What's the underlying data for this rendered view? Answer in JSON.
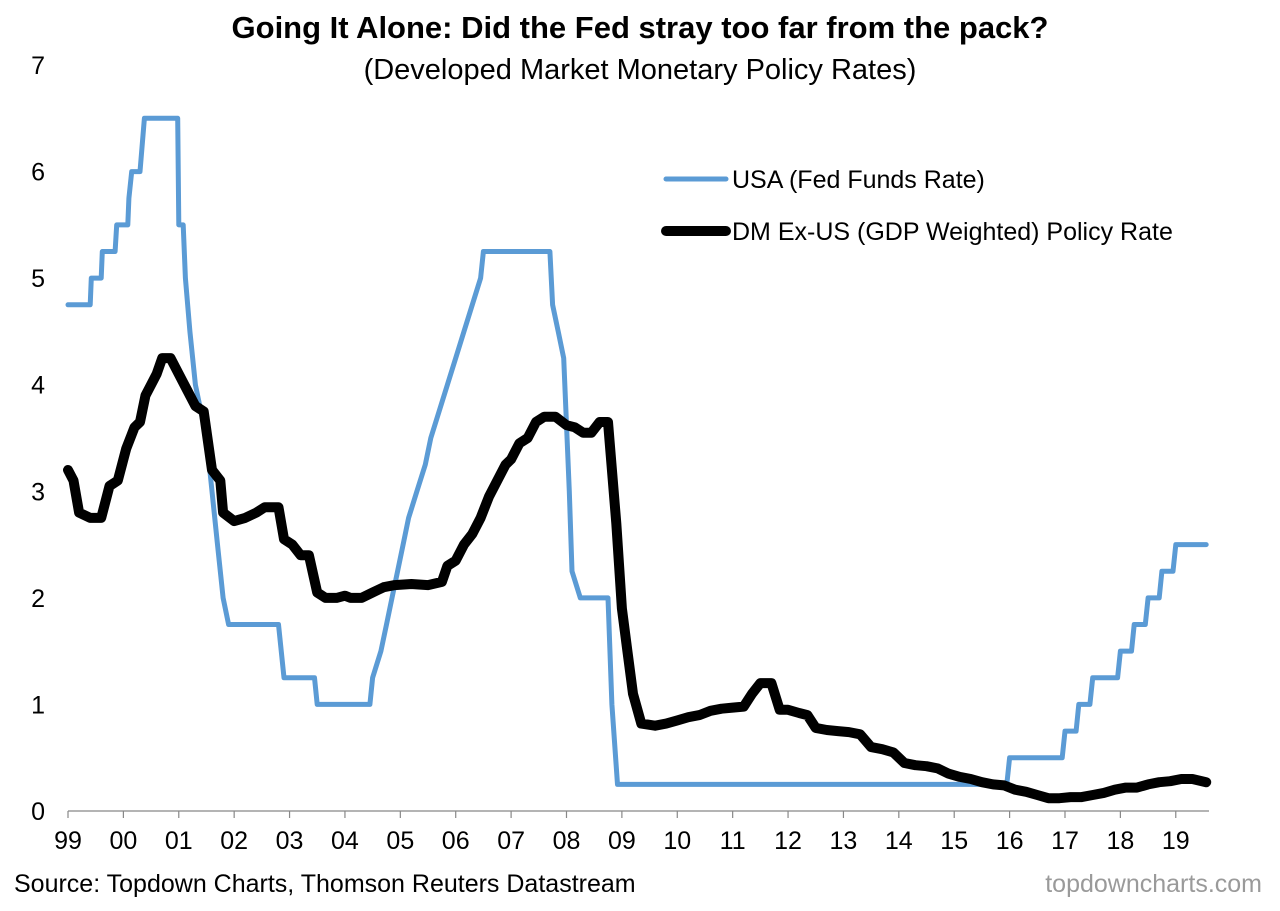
{
  "chart_data": {
    "type": "line",
    "title": "Going It Alone: Did the Fed stray too far from the pack?",
    "subtitle": "(Developed Market Monetary Policy Rates)",
    "xlabel": "",
    "ylabel": "",
    "xlim": [
      1999,
      2019.6
    ],
    "ylim": [
      0,
      7
    ],
    "x_ticks": [
      "99",
      "00",
      "01",
      "02",
      "03",
      "04",
      "05",
      "06",
      "07",
      "08",
      "09",
      "10",
      "11",
      "12",
      "13",
      "14",
      "15",
      "16",
      "17",
      "18",
      "19"
    ],
    "y_ticks": [
      "0",
      "1",
      "2",
      "3",
      "4",
      "5",
      "6",
      "7"
    ],
    "grid": false,
    "legend_position": "top-right",
    "series": [
      {
        "name": "USA (Fed Funds Rate)",
        "color": "#5B9BD5",
        "step": true,
        "points": [
          [
            1999.0,
            4.75
          ],
          [
            1999.4,
            4.75
          ],
          [
            1999.42,
            5.0
          ],
          [
            1999.6,
            5.0
          ],
          [
            1999.62,
            5.25
          ],
          [
            1999.85,
            5.25
          ],
          [
            1999.88,
            5.5
          ],
          [
            2000.08,
            5.5
          ],
          [
            2000.1,
            5.75
          ],
          [
            2000.15,
            6.0
          ],
          [
            2000.3,
            6.0
          ],
          [
            2000.38,
            6.5
          ],
          [
            2000.98,
            6.5
          ],
          [
            2001.0,
            5.5
          ],
          [
            2001.08,
            5.5
          ],
          [
            2001.12,
            5.0
          ],
          [
            2001.2,
            4.5
          ],
          [
            2001.3,
            4.0
          ],
          [
            2001.4,
            3.75
          ],
          [
            2001.5,
            3.5
          ],
          [
            2001.6,
            3.0
          ],
          [
            2001.7,
            2.5
          ],
          [
            2001.8,
            2.0
          ],
          [
            2001.9,
            1.75
          ],
          [
            2002.8,
            1.75
          ],
          [
            2002.9,
            1.25
          ],
          [
            2003.45,
            1.25
          ],
          [
            2003.5,
            1.0
          ],
          [
            2004.45,
            1.0
          ],
          [
            2004.5,
            1.25
          ],
          [
            2004.65,
            1.5
          ],
          [
            2004.75,
            1.75
          ],
          [
            2004.85,
            2.0
          ],
          [
            2004.95,
            2.25
          ],
          [
            2005.05,
            2.5
          ],
          [
            2005.15,
            2.75
          ],
          [
            2005.3,
            3.0
          ],
          [
            2005.45,
            3.25
          ],
          [
            2005.55,
            3.5
          ],
          [
            2005.7,
            3.75
          ],
          [
            2005.85,
            4.0
          ],
          [
            2006.0,
            4.25
          ],
          [
            2006.15,
            4.5
          ],
          [
            2006.3,
            4.75
          ],
          [
            2006.45,
            5.0
          ],
          [
            2006.5,
            5.25
          ],
          [
            2007.7,
            5.25
          ],
          [
            2007.75,
            4.75
          ],
          [
            2007.85,
            4.5
          ],
          [
            2007.95,
            4.25
          ],
          [
            2008.05,
            3.0
          ],
          [
            2008.1,
            2.25
          ],
          [
            2008.25,
            2.0
          ],
          [
            2008.75,
            2.0
          ],
          [
            2008.82,
            1.0
          ],
          [
            2008.92,
            0.25
          ],
          [
            2015.95,
            0.25
          ],
          [
            2016.0,
            0.5
          ],
          [
            2016.95,
            0.5
          ],
          [
            2017.0,
            0.75
          ],
          [
            2017.2,
            0.75
          ],
          [
            2017.25,
            1.0
          ],
          [
            2017.45,
            1.0
          ],
          [
            2017.5,
            1.25
          ],
          [
            2017.95,
            1.25
          ],
          [
            2018.0,
            1.5
          ],
          [
            2018.2,
            1.5
          ],
          [
            2018.25,
            1.75
          ],
          [
            2018.45,
            1.75
          ],
          [
            2018.5,
            2.0
          ],
          [
            2018.7,
            2.0
          ],
          [
            2018.75,
            2.25
          ],
          [
            2018.95,
            2.25
          ],
          [
            2019.0,
            2.5
          ],
          [
            2019.55,
            2.5
          ]
        ]
      },
      {
        "name": "DM Ex-US (GDP Weighted) Policy Rate",
        "color": "#000000",
        "step": false,
        "points": [
          [
            1999.0,
            3.2
          ],
          [
            1999.1,
            3.1
          ],
          [
            1999.2,
            2.8
          ],
          [
            1999.4,
            2.75
          ],
          [
            1999.6,
            2.75
          ],
          [
            1999.75,
            3.05
          ],
          [
            1999.9,
            3.1
          ],
          [
            2000.05,
            3.4
          ],
          [
            2000.2,
            3.6
          ],
          [
            2000.3,
            3.65
          ],
          [
            2000.4,
            3.9
          ],
          [
            2000.5,
            4.0
          ],
          [
            2000.6,
            4.1
          ],
          [
            2000.7,
            4.25
          ],
          [
            2000.85,
            4.25
          ],
          [
            2001.0,
            4.1
          ],
          [
            2001.15,
            3.95
          ],
          [
            2001.3,
            3.8
          ],
          [
            2001.45,
            3.75
          ],
          [
            2001.6,
            3.2
          ],
          [
            2001.75,
            3.1
          ],
          [
            2001.8,
            2.8
          ],
          [
            2002.0,
            2.72
          ],
          [
            2002.2,
            2.75
          ],
          [
            2002.4,
            2.8
          ],
          [
            2002.55,
            2.85
          ],
          [
            2002.8,
            2.85
          ],
          [
            2002.9,
            2.55
          ],
          [
            2003.05,
            2.5
          ],
          [
            2003.2,
            2.4
          ],
          [
            2003.35,
            2.4
          ],
          [
            2003.5,
            2.05
          ],
          [
            2003.65,
            2.0
          ],
          [
            2003.85,
            2.0
          ],
          [
            2004.0,
            2.02
          ],
          [
            2004.1,
            2.0
          ],
          [
            2004.3,
            2.0
          ],
          [
            2004.5,
            2.05
          ],
          [
            2004.7,
            2.1
          ],
          [
            2004.9,
            2.12
          ],
          [
            2005.2,
            2.13
          ],
          [
            2005.5,
            2.12
          ],
          [
            2005.75,
            2.15
          ],
          [
            2005.85,
            2.3
          ],
          [
            2006.0,
            2.35
          ],
          [
            2006.15,
            2.5
          ],
          [
            2006.3,
            2.6
          ],
          [
            2006.45,
            2.75
          ],
          [
            2006.6,
            2.95
          ],
          [
            2006.75,
            3.1
          ],
          [
            2006.9,
            3.25
          ],
          [
            2007.0,
            3.3
          ],
          [
            2007.15,
            3.45
          ],
          [
            2007.3,
            3.5
          ],
          [
            2007.45,
            3.65
          ],
          [
            2007.6,
            3.7
          ],
          [
            2007.8,
            3.7
          ],
          [
            2008.0,
            3.62
          ],
          [
            2008.15,
            3.6
          ],
          [
            2008.3,
            3.55
          ],
          [
            2008.45,
            3.55
          ],
          [
            2008.6,
            3.65
          ],
          [
            2008.75,
            3.65
          ],
          [
            2008.9,
            2.7
          ],
          [
            2009.0,
            1.9
          ],
          [
            2009.1,
            1.5
          ],
          [
            2009.2,
            1.1
          ],
          [
            2009.35,
            0.82
          ],
          [
            2009.6,
            0.8
          ],
          [
            2009.8,
            0.82
          ],
          [
            2010.0,
            0.85
          ],
          [
            2010.2,
            0.88
          ],
          [
            2010.4,
            0.9
          ],
          [
            2010.6,
            0.94
          ],
          [
            2010.8,
            0.96
          ],
          [
            2011.0,
            0.97
          ],
          [
            2011.2,
            0.98
          ],
          [
            2011.35,
            1.1
          ],
          [
            2011.5,
            1.2
          ],
          [
            2011.7,
            1.2
          ],
          [
            2011.85,
            0.95
          ],
          [
            2012.0,
            0.95
          ],
          [
            2012.2,
            0.92
          ],
          [
            2012.35,
            0.9
          ],
          [
            2012.5,
            0.78
          ],
          [
            2012.7,
            0.76
          ],
          [
            2012.9,
            0.75
          ],
          [
            2013.1,
            0.74
          ],
          [
            2013.3,
            0.72
          ],
          [
            2013.5,
            0.6
          ],
          [
            2013.7,
            0.58
          ],
          [
            2013.9,
            0.55
          ],
          [
            2014.1,
            0.45
          ],
          [
            2014.3,
            0.43
          ],
          [
            2014.5,
            0.42
          ],
          [
            2014.7,
            0.4
          ],
          [
            2014.9,
            0.35
          ],
          [
            2015.1,
            0.32
          ],
          [
            2015.3,
            0.3
          ],
          [
            2015.5,
            0.27
          ],
          [
            2015.7,
            0.25
          ],
          [
            2015.9,
            0.24
          ],
          [
            2016.1,
            0.2
          ],
          [
            2016.3,
            0.18
          ],
          [
            2016.5,
            0.15
          ],
          [
            2016.7,
            0.12
          ],
          [
            2016.9,
            0.12
          ],
          [
            2017.1,
            0.13
          ],
          [
            2017.3,
            0.13
          ],
          [
            2017.5,
            0.15
          ],
          [
            2017.7,
            0.17
          ],
          [
            2017.9,
            0.2
          ],
          [
            2018.1,
            0.22
          ],
          [
            2018.3,
            0.22
          ],
          [
            2018.5,
            0.25
          ],
          [
            2018.7,
            0.27
          ],
          [
            2018.9,
            0.28
          ],
          [
            2019.1,
            0.3
          ],
          [
            2019.3,
            0.3
          ],
          [
            2019.55,
            0.27
          ]
        ]
      }
    ]
  },
  "footer": {
    "source": "Source: Topdown Charts, Thomson Reuters Datastream",
    "watermark": "topdowncharts.com"
  }
}
